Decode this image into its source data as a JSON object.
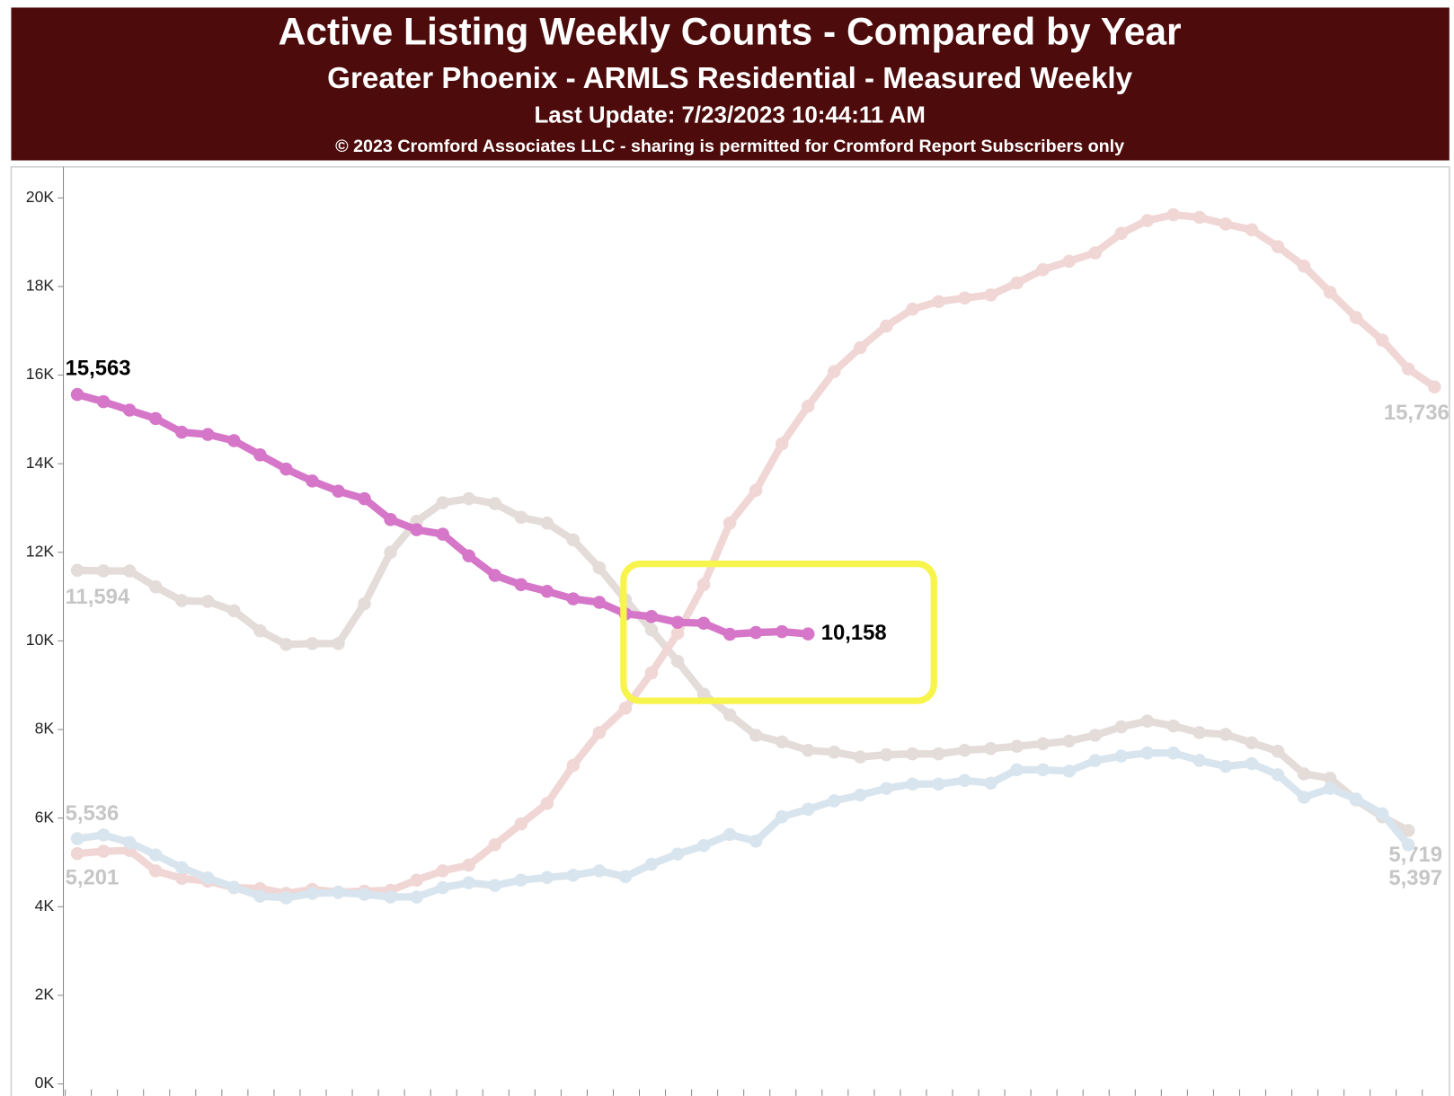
{
  "chart_data": {
    "type": "line",
    "title": "Active Listing Weekly Counts - Compared by Year",
    "subtitle": "Greater Phoenix - ARMLS Residential - Measured Weekly",
    "update": "Last Update: 7/23/2023 10:44:11 AM",
    "copyright": "© 2023 Cromford Associates LLC - sharing is permitted for Cromford Report Subscribers only",
    "categories": [
      null,
      null,
      null,
      null,
      null,
      null,
      null,
      null,
      null,
      null,
      null,
      null,
      null,
      null,
      null,
      null,
      null,
      null,
      null,
      null,
      null,
      null,
      null,
      null,
      null,
      null,
      null,
      null,
      null,
      null,
      null,
      null,
      null,
      null,
      null,
      null,
      null,
      null,
      null,
      null,
      null,
      null,
      null,
      null,
      null,
      null,
      null,
      null,
      null,
      null,
      null,
      null,
      null
    ],
    "ylim": [
      -270,
      20700
    ],
    "yticks": [
      {
        "value": 0,
        "label": "0K"
      },
      {
        "value": 2000,
        "label": "2K"
      },
      {
        "value": 4000,
        "label": "4K"
      },
      {
        "value": 6000,
        "label": "6K"
      },
      {
        "value": 8000,
        "label": "8K"
      },
      {
        "value": 10000,
        "label": "10K"
      },
      {
        "value": 12000,
        "label": "12K"
      },
      {
        "value": 14000,
        "label": "14K"
      },
      {
        "value": 16000,
        "label": "16K"
      },
      {
        "value": 18000,
        "label": "18K"
      },
      {
        "value": 20000,
        "label": "20K"
      }
    ],
    "grid": false,
    "series": [
      {
        "color": "#e3dcd9",
        "label_color": "#c6c6c6",
        "values": [
          11594,
          11580,
          11580,
          11220,
          10910,
          10890,
          10680,
          10230,
          9920,
          9940,
          9940,
          10840,
          12000,
          12700,
          13120,
          13210,
          13100,
          12790,
          12660,
          12280,
          11650,
          10930,
          10250,
          9540,
          8800,
          8330,
          7870,
          7720,
          7530,
          7490,
          7380,
          7430,
          7450,
          7450,
          7530,
          7570,
          7620,
          7680,
          7740,
          7870,
          8060,
          8190,
          8080,
          7930,
          7890,
          7700,
          7510,
          7000,
          6900,
          6410,
          6030,
          5719,
          null
        ],
        "value_labels": [
          "11,594",
          null,
          null,
          null,
          null,
          null,
          null,
          null,
          null,
          null,
          null,
          null,
          null,
          null,
          null,
          null,
          null,
          null,
          null,
          null,
          null,
          null,
          null,
          null,
          null,
          null,
          null,
          null,
          null,
          null,
          null,
          null,
          null,
          null,
          null,
          null,
          null,
          null,
          null,
          null,
          null,
          null,
          null,
          null,
          null,
          null,
          null,
          null,
          null,
          null,
          null,
          "5,719",
          null
        ]
      },
      {
        "color": "#f0d6d4",
        "label_color": "#c6c6c6",
        "values": [
          5201,
          5250,
          5270,
          4810,
          4640,
          4580,
          4430,
          4410,
          4300,
          4390,
          4330,
          4350,
          4370,
          4600,
          4810,
          4940,
          5400,
          5870,
          6330,
          7190,
          7930,
          8480,
          9280,
          10170,
          11270,
          12660,
          13400,
          14450,
          15300,
          16080,
          16620,
          17110,
          17490,
          17660,
          17740,
          17810,
          18080,
          18380,
          18570,
          18760,
          19200,
          19490,
          19620,
          19560,
          19410,
          19280,
          18900,
          18460,
          17870,
          17300,
          16790,
          16140,
          15736
        ],
        "value_labels": [
          "5,201",
          null,
          null,
          null,
          null,
          null,
          null,
          null,
          null,
          null,
          null,
          null,
          null,
          null,
          null,
          null,
          null,
          null,
          null,
          null,
          null,
          null,
          null,
          null,
          null,
          null,
          null,
          null,
          null,
          null,
          null,
          null,
          null,
          null,
          null,
          null,
          null,
          null,
          null,
          null,
          null,
          null,
          null,
          null,
          null,
          null,
          null,
          null,
          null,
          null,
          null,
          null,
          "15,736"
        ]
      },
      {
        "color": "#d9e5ee",
        "label_color": "#c6c6c6",
        "values": [
          5536,
          5620,
          5450,
          5170,
          4880,
          4650,
          4440,
          4240,
          4200,
          4300,
          4320,
          4280,
          4220,
          4220,
          4430,
          4540,
          4480,
          4600,
          4660,
          4710,
          4810,
          4680,
          4960,
          5190,
          5380,
          5630,
          5480,
          6030,
          6200,
          6390,
          6520,
          6670,
          6770,
          6770,
          6850,
          6790,
          7090,
          7090,
          7060,
          7300,
          7400,
          7470,
          7470,
          7300,
          7170,
          7230,
          6980,
          6470,
          6670,
          6430,
          6100,
          5397,
          null
        ],
        "value_labels": [
          "5,536",
          null,
          null,
          null,
          null,
          null,
          null,
          null,
          null,
          null,
          null,
          null,
          null,
          null,
          null,
          null,
          null,
          null,
          null,
          null,
          null,
          null,
          null,
          null,
          null,
          null,
          null,
          null,
          null,
          null,
          null,
          null,
          null,
          null,
          null,
          null,
          null,
          null,
          null,
          null,
          null,
          null,
          null,
          null,
          null,
          null,
          null,
          null,
          null,
          null,
          null,
          "5,397",
          null
        ]
      },
      {
        "color": "#d676c8",
        "label_color": "#000000",
        "values": [
          15563,
          15400,
          15210,
          15020,
          14710,
          14660,
          14520,
          14200,
          13880,
          13610,
          13380,
          13210,
          12740,
          12510,
          12410,
          11920,
          11480,
          11270,
          11120,
          10950,
          10870,
          10610,
          10550,
          10420,
          10400,
          10150,
          10190,
          10210,
          10158,
          null,
          null,
          null,
          null,
          null,
          null,
          null,
          null,
          null,
          null,
          null,
          null,
          null,
          null,
          null,
          null,
          null,
          null,
          null,
          null,
          null,
          null,
          null,
          null
        ],
        "value_labels": [
          "15,563",
          null,
          null,
          null,
          null,
          null,
          null,
          null,
          null,
          null,
          null,
          null,
          null,
          null,
          null,
          null,
          null,
          null,
          null,
          null,
          null,
          null,
          null,
          null,
          null,
          null,
          null,
          null,
          "10,158",
          null,
          null,
          null,
          null,
          null,
          null,
          null,
          null,
          null,
          null,
          null,
          null,
          null,
          null,
          null,
          null,
          null,
          null,
          null,
          null,
          null,
          null,
          null,
          null
        ]
      }
    ]
  }
}
